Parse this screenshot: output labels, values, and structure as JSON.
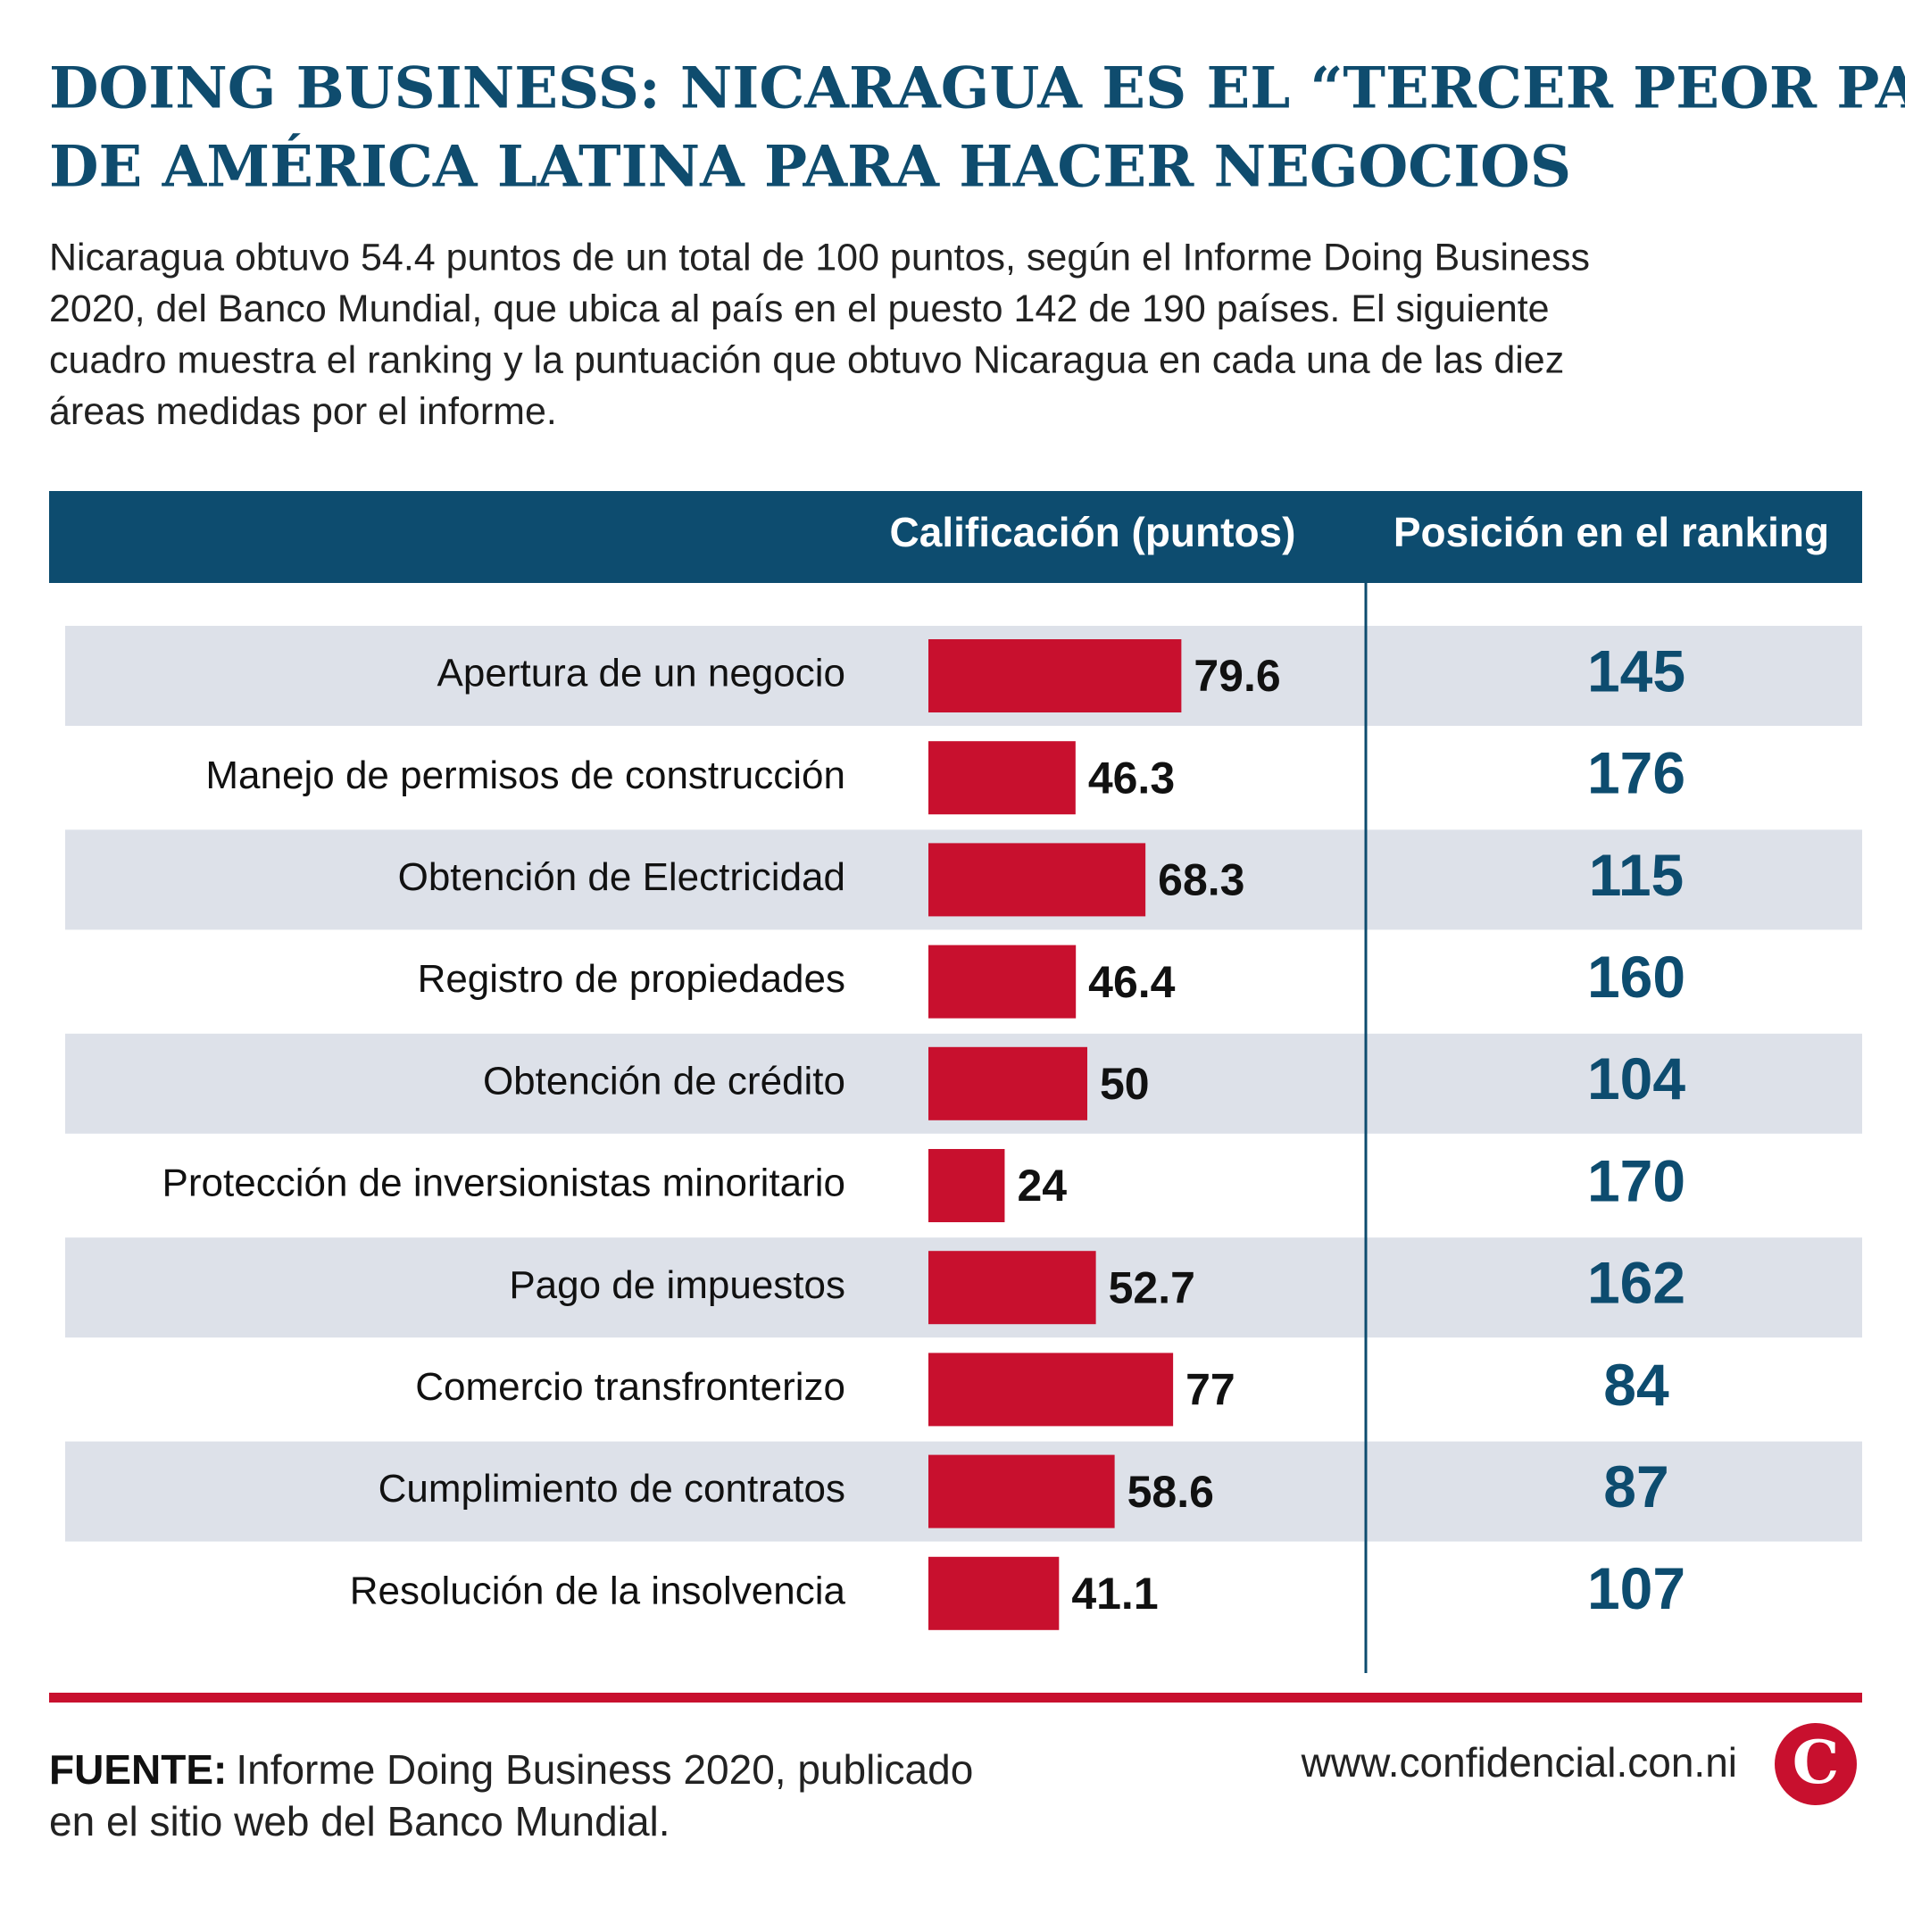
{
  "chart_data": {
    "type": "bar",
    "title": [
      "DOING BUSINESS: NICARAGUA ES EL “TERCER PEOR PAÍS”",
      "DE AMÉRICA LATINA PARA HACER NEGOCIOS"
    ],
    "subtitle": [
      "Nicaragua obtuvo 54.4 puntos de un total de 100 puntos, según el Informe Doing Business",
      "2020, del Banco Mundial, que ubica al país en el puesto 142 de 190 países. El siguiente",
      "cuadro muestra el ranking y la puntuación que obtuvo Nicaragua en cada una de las diez",
      "áreas medidas por el informe."
    ],
    "column_headers": [
      "Calificación (puntos)",
      "Posición en el ranking"
    ],
    "categories": [
      "Apertura de un negocio",
      "Manejo de permisos de construcción",
      "Obtención de Electricidad",
      "Registro de propiedades",
      "Obtención de crédito",
      "Protección de inversionistas minoritario",
      "Pago de impuestos",
      "Comercio transfronterizo",
      "Cumplimiento de contratos",
      "Resolución de la insolvencia"
    ],
    "values": [
      79.6,
      46.3,
      68.3,
      46.4,
      50,
      24,
      52.7,
      77,
      58.6,
      41.1
    ],
    "rankings": [
      145,
      176,
      115,
      160,
      104,
      170,
      162,
      84,
      87,
      107
    ],
    "color": "#c8102e",
    "source_label": "FUENTE:",
    "source": [
      "Informe Doing Business 2020, publicado",
      "en el sitio web del Banco Mundial."
    ],
    "website": "www.confidencial.con.ni",
    "logo": "C"
  }
}
